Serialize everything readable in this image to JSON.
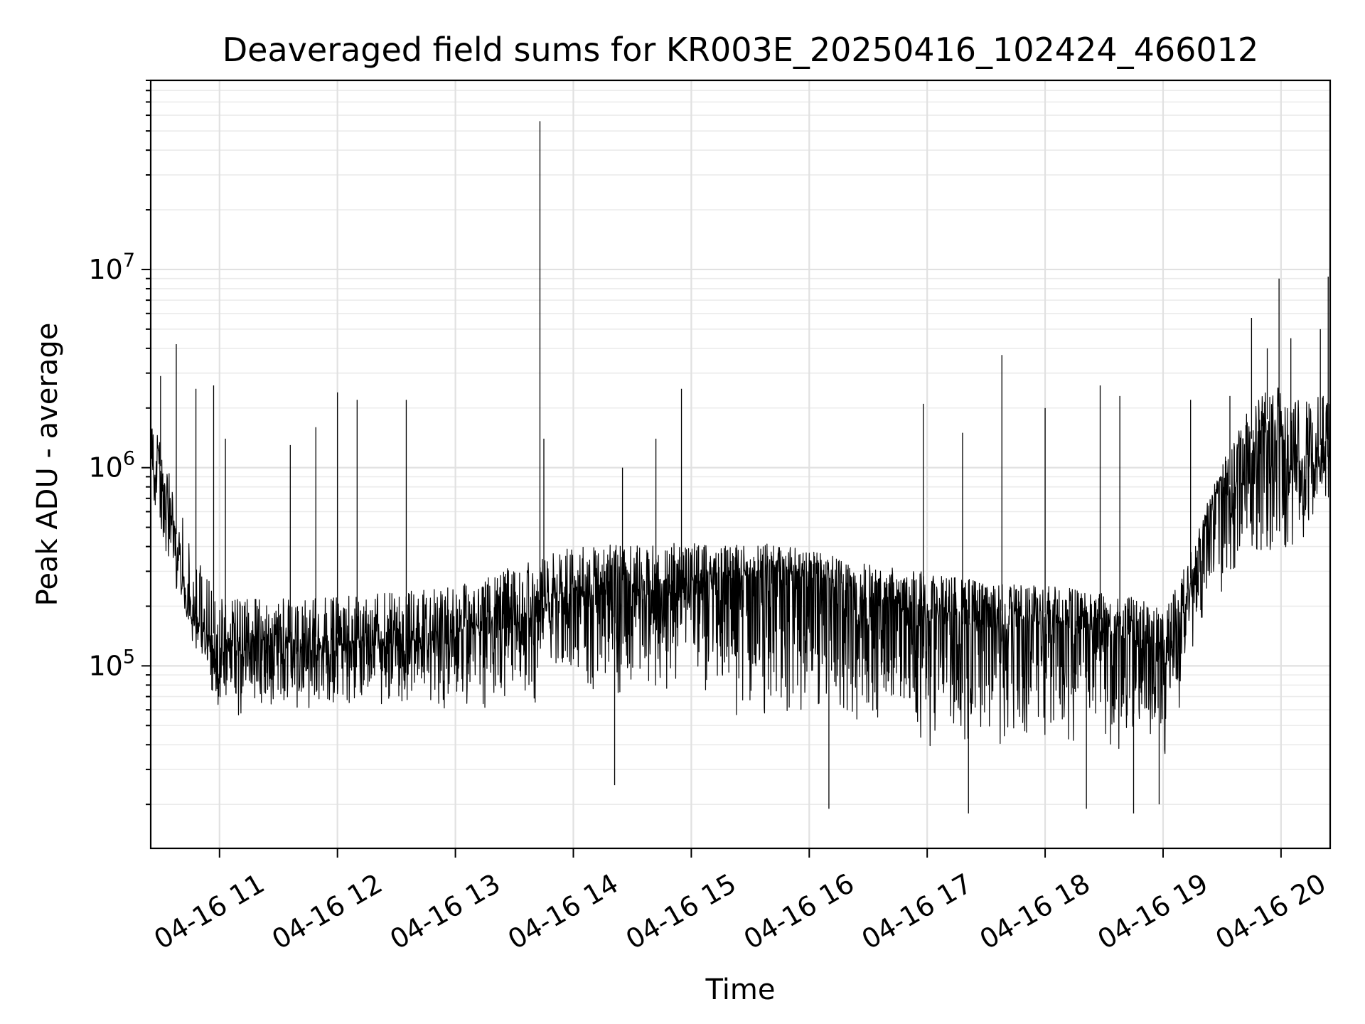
{
  "chart_data": {
    "type": "line",
    "title": "Deaveraged field sums for KR003E_20250416_102424_466012",
    "xlabel": "Time",
    "ylabel": "Peak ADU - average",
    "yscale": "log",
    "grid": true,
    "ylim": [
      12000,
      90000000
    ],
    "xlim": [
      "2025-04-16 10:25",
      "2025-04-16 20:25"
    ],
    "x_ticks": [
      "04-16 11",
      "04-16 12",
      "04-16 13",
      "04-16 14",
      "04-16 15",
      "04-16 16",
      "04-16 17",
      "04-16 18",
      "04-16 19",
      "04-16 20"
    ],
    "y_ticks": [
      {
        "base": "10",
        "exp": "5",
        "value": 100000
      },
      {
        "base": "10",
        "exp": "6",
        "value": 1000000
      },
      {
        "base": "10",
        "exp": "7",
        "value": 10000000
      }
    ],
    "series": [
      {
        "color": "#000000",
        "x": [
          "2025-04-16 10:25",
          "2025-04-16 10:27",
          "2025-04-16 10:29",
          "2025-04-16 10:31",
          "2025-04-16 10:33",
          "2025-04-16 10:35",
          "2025-04-16 10:40",
          "2025-04-16 10:45",
          "2025-04-16 10:50",
          "2025-04-16 10:55",
          "2025-04-16 11:00",
          "2025-04-16 11:10",
          "2025-04-16 11:20",
          "2025-04-16 11:30",
          "2025-04-16 11:40",
          "2025-04-16 11:50",
          "2025-04-16 12:00",
          "2025-04-16 12:10",
          "2025-04-16 12:20",
          "2025-04-16 12:30",
          "2025-04-16 12:40",
          "2025-04-16 12:50",
          "2025-04-16 13:00",
          "2025-04-16 13:10",
          "2025-04-16 13:20",
          "2025-04-16 13:30",
          "2025-04-16 13:40",
          "2025-04-16 13:44",
          "2025-04-16 13:50",
          "2025-04-16 14:00",
          "2025-04-16 14:10",
          "2025-04-16 14:20",
          "2025-04-16 14:30",
          "2025-04-16 14:40",
          "2025-04-16 14:50",
          "2025-04-16 15:00",
          "2025-04-16 15:10",
          "2025-04-16 15:20",
          "2025-04-16 15:30",
          "2025-04-16 15:40",
          "2025-04-16 15:50",
          "2025-04-16 16:00",
          "2025-04-16 16:10",
          "2025-04-16 16:20",
          "2025-04-16 16:30",
          "2025-04-16 16:40",
          "2025-04-16 16:50",
          "2025-04-16 17:00",
          "2025-04-16 17:10",
          "2025-04-16 17:20",
          "2025-04-16 17:30",
          "2025-04-16 17:40",
          "2025-04-16 17:50",
          "2025-04-16 18:00",
          "2025-04-16 18:10",
          "2025-04-16 18:20",
          "2025-04-16 18:30",
          "2025-04-16 18:40",
          "2025-04-16 18:50",
          "2025-04-16 19:00",
          "2025-04-16 19:05",
          "2025-04-16 19:10",
          "2025-04-16 19:15",
          "2025-04-16 19:20",
          "2025-04-16 19:25",
          "2025-04-16 19:30",
          "2025-04-16 19:35",
          "2025-04-16 19:40",
          "2025-04-16 19:45",
          "2025-04-16 19:50",
          "2025-04-16 19:55",
          "2025-04-16 20:00",
          "2025-04-16 20:05",
          "2025-04-16 20:10",
          "2025-04-16 20:15",
          "2025-04-16 20:20",
          "2025-04-16 20:25"
        ],
        "y": [
          1500000,
          900000,
          1300000,
          800000,
          1000000,
          700000,
          350000,
          200000,
          170000,
          150000,
          140000,
          140000,
          145000,
          145000,
          140000,
          140000,
          145000,
          150000,
          150000,
          150000,
          150000,
          155000,
          160000,
          170000,
          190000,
          200000,
          210000,
          220000,
          240000,
          250000,
          260000,
          270000,
          270000,
          270000,
          280000,
          290000,
          300000,
          310000,
          320000,
          330000,
          320000,
          300000,
          280000,
          260000,
          240000,
          230000,
          220000,
          210000,
          200000,
          190000,
          190000,
          190000,
          185000,
          185000,
          180000,
          180000,
          170000,
          160000,
          140000,
          130000,
          140000,
          200000,
          300000,
          500000,
          700000,
          900000,
          800000,
          1000000,
          1400000,
          1700000,
          1800000,
          1600000,
          1300000,
          1100000,
          1200000,
          1300000,
          1400000
        ]
      }
    ],
    "noise_envelope": {
      "x": [
        "2025-04-16 10:25",
        "2025-04-16 10:40",
        "2025-04-16 11:00",
        "2025-04-16 12:00",
        "2025-04-16 13:00",
        "2025-04-16 14:00",
        "2025-04-16 15:00",
        "2025-04-16 15:30",
        "2025-04-16 16:00",
        "2025-04-16 16:30",
        "2025-04-16 17:00",
        "2025-04-16 17:30",
        "2025-04-16 18:00",
        "2025-04-16 18:30",
        "2025-04-16 19:00",
        "2025-04-16 19:20",
        "2025-04-16 19:40",
        "2025-04-16 20:00",
        "2025-04-16 20:25"
      ],
      "low": [
        600000,
        200000,
        55000,
        55000,
        55000,
        65000,
        70000,
        45000,
        45000,
        40000,
        35000,
        32000,
        35000,
        33000,
        30000,
        150000,
        300000,
        300000,
        600000
      ],
      "high": [
        2000000,
        1000000,
        300000,
        300000,
        350000,
        550000,
        550000,
        500000,
        450000,
        400000,
        380000,
        350000,
        320000,
        300000,
        280000,
        600000,
        2500000,
        3500000,
        3500000
      ]
    },
    "spikes": [
      {
        "x": "2025-04-16 10:30",
        "y": 2900000
      },
      {
        "x": "2025-04-16 10:38",
        "y": 4200000
      },
      {
        "x": "2025-04-16 10:48",
        "y": 2500000
      },
      {
        "x": "2025-04-16 10:57",
        "y": 2600000
      },
      {
        "x": "2025-04-16 11:03",
        "y": 1400000
      },
      {
        "x": "2025-04-16 11:36",
        "y": 1300000
      },
      {
        "x": "2025-04-16 11:49",
        "y": 1600000
      },
      {
        "x": "2025-04-16 12:00",
        "y": 2400000
      },
      {
        "x": "2025-04-16 12:10",
        "y": 2200000
      },
      {
        "x": "2025-04-16 12:35",
        "y": 2200000
      },
      {
        "x": "2025-04-16 13:43",
        "y": 56000000
      },
      {
        "x": "2025-04-16 13:45",
        "y": 1400000
      },
      {
        "x": "2025-04-16 14:25",
        "y": 1000000
      },
      {
        "x": "2025-04-16 14:42",
        "y": 1400000
      },
      {
        "x": "2025-04-16 14:55",
        "y": 2500000
      },
      {
        "x": "2025-04-16 16:58",
        "y": 2100000
      },
      {
        "x": "2025-04-16 17:18",
        "y": 1500000
      },
      {
        "x": "2025-04-16 17:38",
        "y": 3700000
      },
      {
        "x": "2025-04-16 18:00",
        "y": 2000000
      },
      {
        "x": "2025-04-16 18:28",
        "y": 2600000
      },
      {
        "x": "2025-04-16 18:38",
        "y": 2300000
      },
      {
        "x": "2025-04-16 19:14",
        "y": 2200000
      },
      {
        "x": "2025-04-16 19:34",
        "y": 2300000
      },
      {
        "x": "2025-04-16 19:45",
        "y": 5700000
      },
      {
        "x": "2025-04-16 19:53",
        "y": 4000000
      },
      {
        "x": "2025-04-16 19:59",
        "y": 9000000
      },
      {
        "x": "2025-04-16 20:05",
        "y": 4500000
      },
      {
        "x": "2025-04-16 20:20",
        "y": 5000000
      },
      {
        "x": "2025-04-16 20:24",
        "y": 9200000
      }
    ],
    "dips": [
      {
        "x": "2025-04-16 14:21",
        "y": 25000
      },
      {
        "x": "2025-04-16 16:10",
        "y": 19000
      },
      {
        "x": "2025-04-16 17:21",
        "y": 18000
      },
      {
        "x": "2025-04-16 18:21",
        "y": 19000
      },
      {
        "x": "2025-04-16 18:45",
        "y": 18000
      },
      {
        "x": "2025-04-16 18:58",
        "y": 20000
      }
    ]
  }
}
